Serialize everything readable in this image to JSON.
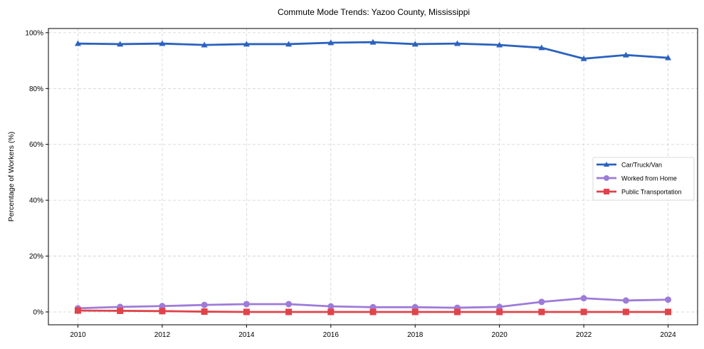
{
  "chart_data": {
    "type": "line",
    "title": "Commute Mode Trends: Yazoo County, Mississippi",
    "xlabel": "",
    "ylabel": "Percentage of Workers (%)",
    "x": [
      2010,
      2011,
      2012,
      2013,
      2014,
      2015,
      2016,
      2017,
      2018,
      2019,
      2020,
      2021,
      2022,
      2023,
      2024
    ],
    "x_ticks": [
      "2010",
      "2012",
      "2014",
      "2016",
      "2018",
      "2020",
      "2022",
      "2024"
    ],
    "y_ticks": [
      "0%",
      "20%",
      "40%",
      "60%",
      "80%",
      "100%"
    ],
    "ylim": [
      -4.6,
      101.5
    ],
    "xlim": [
      2009.3,
      2024.7
    ],
    "grid": true,
    "legend_position": "center right",
    "series": [
      {
        "name": "Car/Truck/Van",
        "color": "#2a62bf",
        "marker": "triangle",
        "values": [
          96.1,
          95.9,
          96.1,
          95.6,
          95.9,
          95.9,
          96.4,
          96.6,
          95.9,
          96.1,
          95.6,
          94.6,
          90.7,
          92.0,
          91.0
        ]
      },
      {
        "name": "Worked from Home",
        "color": "#9e7bd9",
        "marker": "circle",
        "values": [
          1.3,
          1.8,
          2.1,
          2.5,
          2.8,
          2.8,
          2.0,
          1.7,
          1.7,
          1.5,
          1.8,
          3.6,
          4.9,
          4.1,
          4.4
        ]
      },
      {
        "name": "Public Transportation",
        "color": "#e0434a",
        "marker": "square",
        "values": [
          0.5,
          0.4,
          0.3,
          0.1,
          0.0,
          0.0,
          0.0,
          0.0,
          0.0,
          0.0,
          0.0,
          0.0,
          0.0,
          0.0,
          0.0
        ]
      }
    ]
  }
}
